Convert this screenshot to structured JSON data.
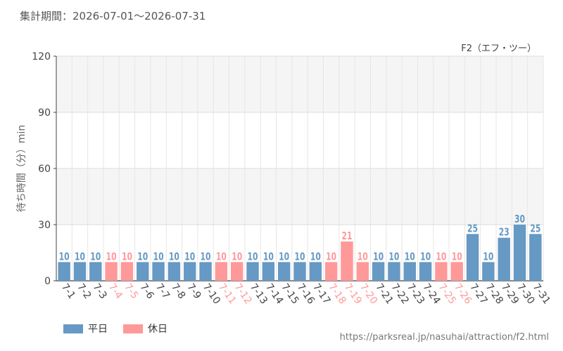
{
  "period_label": "集計期間：2026-07-01～2026-07-31",
  "source_url": "https://parksreal.jp/nasuhai/attraction/f2.html",
  "colors": {
    "weekday": "#6699c4",
    "holiday": "#ff9999",
    "grid": "#e6e6e6",
    "band": "#f5f5f5"
  },
  "legend": [
    {
      "label": "平日",
      "color": "#6699c4"
    },
    {
      "label": "休日",
      "color": "#ff9999"
    }
  ],
  "chart_data": {
    "type": "bar",
    "title": "F2（エフ・ツー）",
    "ylabel": "待ち時間（分）min",
    "xlabel": "",
    "ylim": [
      0,
      120
    ],
    "yticks": [
      0,
      30,
      60,
      90,
      120
    ],
    "grid": true,
    "categories": [
      "7-1",
      "7-2",
      "7-3",
      "7-4",
      "7-5",
      "7-6",
      "7-7",
      "7-8",
      "7-9",
      "7-10",
      "7-11",
      "7-12",
      "7-13",
      "7-14",
      "7-15",
      "7-16",
      "7-17",
      "7-18",
      "7-19",
      "7-20",
      "7-21",
      "7-22",
      "7-23",
      "7-24",
      "7-25",
      "7-26",
      "7-27",
      "7-28",
      "7-29",
      "7-30",
      "7-31"
    ],
    "values": [
      10,
      10,
      10,
      10,
      10,
      10,
      10,
      10,
      10,
      10,
      10,
      10,
      10,
      10,
      10,
      10,
      10,
      10,
      21,
      10,
      10,
      10,
      10,
      10,
      10,
      10,
      25,
      10,
      23,
      30,
      25
    ],
    "holiday": [
      false,
      false,
      false,
      true,
      true,
      false,
      false,
      false,
      false,
      false,
      true,
      true,
      false,
      false,
      false,
      false,
      false,
      true,
      true,
      true,
      false,
      false,
      false,
      false,
      true,
      true,
      false,
      false,
      false,
      false,
      false
    ]
  }
}
